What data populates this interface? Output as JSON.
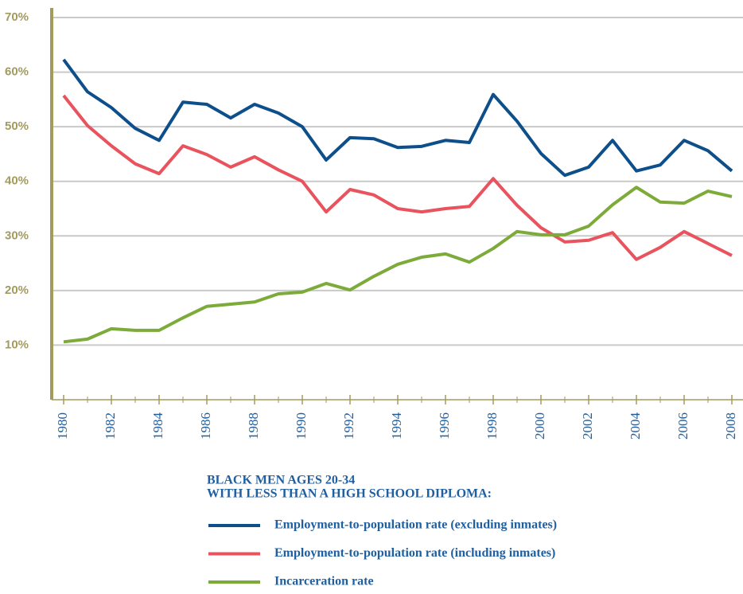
{
  "chart_data": {
    "type": "line",
    "x": [
      1980,
      1981,
      1982,
      1983,
      1984,
      1985,
      1986,
      1987,
      1988,
      1989,
      1990,
      1991,
      1992,
      1993,
      1994,
      1995,
      1996,
      1997,
      1998,
      1999,
      2000,
      2001,
      2002,
      2003,
      2004,
      2005,
      2006,
      2007,
      2008
    ],
    "series": [
      {
        "name": "Employment-to-population rate (excluding inmates)",
        "color": "#0d4f8b",
        "values": [
          62.3,
          56.4,
          53.5,
          49.7,
          47.5,
          54.5,
          54.1,
          51.6,
          54.1,
          52.5,
          50,
          43.9,
          48,
          47.8,
          46.2,
          46.4,
          47.5,
          47.1,
          55.9,
          51,
          45.1,
          41.1,
          42.6,
          47.5,
          41.9,
          43,
          47.5,
          45.6,
          41.9
        ]
      },
      {
        "name": "Employment-to-population rate (including inmates)",
        "color": "#e8535e",
        "values": [
          55.7,
          50.2,
          46.5,
          43.2,
          41.4,
          46.5,
          44.9,
          42.6,
          44.5,
          42.1,
          40,
          34.4,
          38.5,
          37.5,
          35,
          34.4,
          35,
          35.4,
          40.5,
          35.6,
          31.5,
          28.9,
          29.2,
          30.6,
          25.7,
          27.9,
          30.8,
          28.6,
          26.4
        ]
      },
      {
        "name": "Incarceration rate",
        "color": "#7cab3a",
        "values": [
          10.6,
          11.1,
          13,
          12.7,
          12.7,
          15,
          17.1,
          17.5,
          17.9,
          19.4,
          19.7,
          21.3,
          20.1,
          22.6,
          24.8,
          26.1,
          26.7,
          25.2,
          27.7,
          30.8,
          30.2,
          30.2,
          31.8,
          35.7,
          38.9,
          36.2,
          36,
          38.2,
          37.2
        ]
      }
    ],
    "legend_title": [
      "BLACK MEN AGES 20-34",
      "WITH LESS THAN A HIGH SCHOOL DIPLOMA:"
    ],
    "xlim": [
      1980,
      2008
    ],
    "xticks": [
      1980,
      1982,
      1984,
      1986,
      1988,
      1990,
      1992,
      1994,
      1996,
      1998,
      2000,
      2002,
      2004,
      2006,
      2008
    ],
    "ylim": [
      0,
      70
    ],
    "yticks": [
      {
        "value": 10,
        "label": "10%"
      },
      {
        "value": 20,
        "label": "20%"
      },
      {
        "value": 30,
        "label": "30%"
      },
      {
        "value": 40,
        "label": "40%"
      },
      {
        "value": 50,
        "label": "50%"
      },
      {
        "value": 60,
        "label": "60%"
      },
      {
        "value": 70,
        "label": "70%"
      }
    ],
    "grid": true
  }
}
